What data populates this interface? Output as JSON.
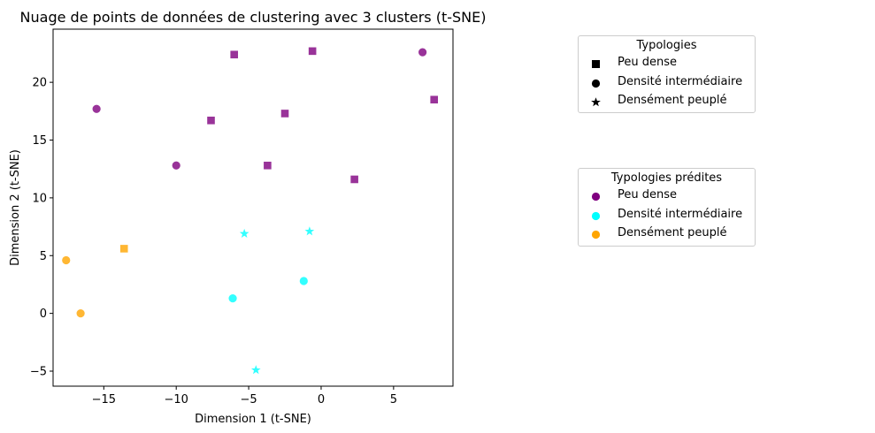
{
  "chart_data": {
    "type": "scatter",
    "title": "Nuage de points de données de clustering avec 3 clusters (t-SNE)",
    "xlabel": "Dimension 1 (t-SNE)",
    "ylabel": "Dimension 2 (t-SNE)",
    "xlim": [
      -18.5,
      9.1
    ],
    "ylim": [
      -6.3,
      24.6
    ],
    "xticks": [
      -15,
      -10,
      -5,
      0,
      5
    ],
    "yticks": [
      -5,
      0,
      5,
      10,
      15,
      20
    ],
    "xtick_labels": [
      "−15",
      "−10",
      "−5",
      "0",
      "5"
    ],
    "ytick_labels": [
      "−5",
      "0",
      "5",
      "10",
      "15",
      "20"
    ],
    "grid": false,
    "points": [
      {
        "x": -6.0,
        "y": 22.4,
        "typology": "Peu dense",
        "predicted": "Peu dense"
      },
      {
        "x": -0.6,
        "y": 22.7,
        "typology": "Peu dense",
        "predicted": "Peu dense"
      },
      {
        "x": -7.6,
        "y": 16.7,
        "typology": "Peu dense",
        "predicted": "Peu dense"
      },
      {
        "x": -2.5,
        "y": 17.3,
        "typology": "Peu dense",
        "predicted": "Peu dense"
      },
      {
        "x": -3.7,
        "y": 12.8,
        "typology": "Peu dense",
        "predicted": "Peu dense"
      },
      {
        "x": 2.3,
        "y": 11.6,
        "typology": "Peu dense",
        "predicted": "Peu dense"
      },
      {
        "x": 7.8,
        "y": 18.5,
        "typology": "Peu dense",
        "predicted": "Peu dense"
      },
      {
        "x": -13.6,
        "y": 5.6,
        "typology": "Peu dense",
        "predicted": "Densément peuplé"
      },
      {
        "x": -15.5,
        "y": 17.7,
        "typology": "Densité intermédiaire",
        "predicted": "Peu dense"
      },
      {
        "x": -10.0,
        "y": 12.8,
        "typology": "Densité intermédiaire",
        "predicted": "Peu dense"
      },
      {
        "x": 7.0,
        "y": 22.6,
        "typology": "Densité intermédiaire",
        "predicted": "Peu dense"
      },
      {
        "x": -6.1,
        "y": 1.3,
        "typology": "Densité intermédiaire",
        "predicted": "Densité intermédiaire"
      },
      {
        "x": -1.2,
        "y": 2.8,
        "typology": "Densité intermédiaire",
        "predicted": "Densité intermédiaire"
      },
      {
        "x": -17.6,
        "y": 4.6,
        "typology": "Densité intermédiaire",
        "predicted": "Densément peuplé"
      },
      {
        "x": -16.6,
        "y": 0.0,
        "typology": "Densité intermédiaire",
        "predicted": "Densément peuplé"
      },
      {
        "x": -5.3,
        "y": 6.9,
        "typology": "Densément peuplé",
        "predicted": "Densité intermédiaire"
      },
      {
        "x": -0.8,
        "y": 7.1,
        "typology": "Densément peuplé",
        "predicted": "Densité intermédiaire"
      },
      {
        "x": -4.5,
        "y": -4.9,
        "typology": "Densément peuplé",
        "predicted": "Densité intermédiaire"
      }
    ],
    "legend_typologies": {
      "title": "Typologies",
      "placement": "top-right outside",
      "entries": [
        {
          "label": "Peu dense",
          "marker": "square",
          "color": "#000000"
        },
        {
          "label": "Densité intermédiaire",
          "marker": "circle",
          "color": "#000000"
        },
        {
          "label": "Densément peuplé",
          "marker": "star",
          "color": "#000000"
        }
      ]
    },
    "legend_predicted": {
      "title": "Typologies prédites",
      "placement": "right outside",
      "entries": [
        {
          "label": "Peu dense",
          "marker": "circle",
          "color": "#800080"
        },
        {
          "label": "Densité intermédiaire",
          "marker": "circle",
          "color": "#00FFFF"
        },
        {
          "label": "Densément peuplé",
          "marker": "circle",
          "color": "#FFA500"
        }
      ]
    }
  }
}
